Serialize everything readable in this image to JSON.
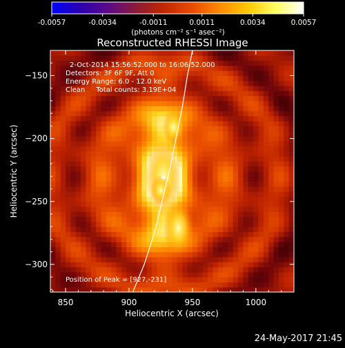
{
  "colorbar": {
    "tick_labels": [
      "-0.0057",
      "-0.0034",
      "-0.0011",
      "0.0011",
      "0.0034",
      "0.0057"
    ],
    "range": [
      -0.0057,
      0.0057
    ],
    "unit_label": "(photons cm⁻² s⁻¹ asec⁻²)",
    "colors": [
      "#0000ff",
      "#2a00b0",
      "#5a0a8a",
      "#8a1a3a",
      "#c02800",
      "#e84a00",
      "#ff8a00",
      "#ffc800",
      "#ffff60",
      "#ffffff"
    ]
  },
  "chart_data": {
    "type": "heatmap",
    "title": "Reconstructed RHESSI Image",
    "xlabel": "Heliocentric X (arcsec)",
    "ylabel": "Heliocentric Y (arcsec)",
    "xlim": [
      838,
      1030
    ],
    "ylim": [
      -322,
      -130
    ],
    "x_ticks": [
      850,
      900,
      950,
      1000
    ],
    "y_ticks": [
      -150,
      -200,
      -250,
      -300
    ],
    "x_tick_labels": [
      "850",
      "900",
      "950",
      "1000"
    ],
    "y_tick_labels": [
      "−150",
      "−200",
      "−250",
      "−300"
    ],
    "peak": [
      927,
      -231
    ],
    "grid": false,
    "limb_curve": [
      [
        903,
        -322
      ],
      [
        912,
        -300
      ],
      [
        920,
        -275
      ],
      [
        926,
        -250
      ],
      [
        932,
        -225
      ],
      [
        937,
        -200
      ],
      [
        942,
        -175
      ],
      [
        946,
        -150
      ],
      [
        950,
        -130
      ]
    ],
    "annotations": [
      "2-Oct-2014 15:56:52.000 to 16:06:52.000",
      "Detectors: 3F 6F 9F, Att 0",
      "Energy Range: 6.0 - 12.0 keV",
      "Clean     Total counts: 3.19E+04"
    ],
    "peak_label": "Position of Peak = [927,-231]"
  },
  "footer_timestamp": "24-May-2017 21:45"
}
